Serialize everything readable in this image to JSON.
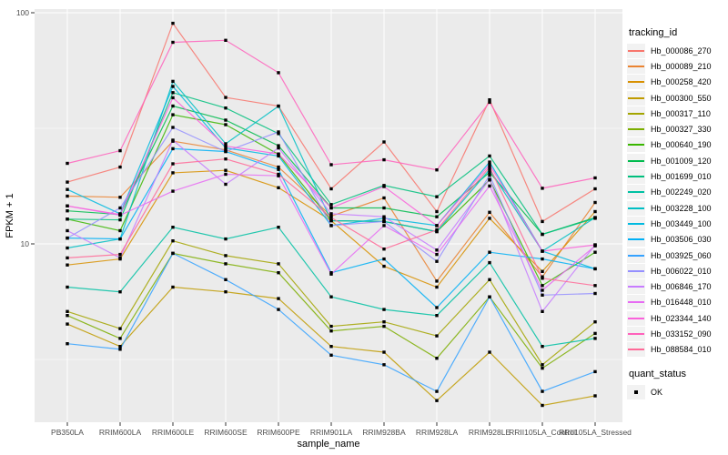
{
  "figure": {
    "y_axis_title": "FPKM + 1",
    "x_axis_title": "sample_name",
    "legend_tracking_title": "tracking_id",
    "legend_quant_title": "quant_status",
    "legend_quant_label": "OK"
  },
  "style": {
    "panel_bg": "#ebebeb",
    "grid_major": "#ffffff",
    "grid_minor": "#ffffff",
    "point_color": "#000000",
    "tick_color": "#333333",
    "tick_label_color": "#4d4d4d",
    "legend_key_bg": "#f2f2f2"
  },
  "chart_data": {
    "type": "line",
    "title": "",
    "xlabel": "sample_name",
    "ylabel": "FPKM + 1",
    "y_scale": "log10",
    "ylim": [
      1.7,
      104
    ],
    "y_major_ticks": [
      10,
      100
    ],
    "y_tick_labels": [
      "10",
      "100"
    ],
    "y_minor_gridlines": [
      3.162,
      31.62
    ],
    "grid": true,
    "legend_position": "right",
    "point_shape": "square",
    "quant_status": "OK",
    "categories": [
      "PB350LA",
      "RRIM600LA",
      "RRIM600LE",
      "RRIM600SE",
      "RRIM600PE",
      "RRIM901LA",
      "RRIM928BA",
      "RRIM928LA",
      "RRIM928LE",
      "RRII105LA_Control",
      "RRII105LA_Stressed"
    ],
    "series": [
      {
        "name": "Hb_000086_270",
        "color": "#F8766D",
        "values": [
          18.5,
          21.5,
          90,
          43,
          39.5,
          17.3,
          27.6,
          13.8,
          42,
          12.5,
          17.3
        ]
      },
      {
        "name": "Hb_000089_210",
        "color": "#EA8331",
        "values": [
          16.1,
          15.9,
          27.8,
          25.5,
          21.5,
          13.2,
          15.8,
          6.9,
          13.7,
          7.2,
          15.1
        ]
      },
      {
        "name": "Hb_000258_420",
        "color": "#D89000",
        "values": [
          8.1,
          8.6,
          20.3,
          20.8,
          17.5,
          12.6,
          8.0,
          6.5,
          12.9,
          7.6,
          13.8
        ]
      },
      {
        "name": "Hb_000300_550",
        "color": "#C09B00",
        "values": [
          4.5,
          3.6,
          6.5,
          6.2,
          5.8,
          3.6,
          3.4,
          2.1,
          3.4,
          2.0,
          2.2
        ]
      },
      {
        "name": "Hb_000317_110",
        "color": "#A3A500",
        "values": [
          5.1,
          4.3,
          10.3,
          8.9,
          8.2,
          4.4,
          4.6,
          4.0,
          7.0,
          3.0,
          4.6
        ]
      },
      {
        "name": "Hb_000327_330",
        "color": "#7CAE00",
        "values": [
          4.9,
          3.9,
          9.1,
          8.2,
          7.5,
          4.2,
          4.4,
          3.2,
          5.9,
          2.9,
          4.1
        ]
      },
      {
        "name": "Hb_000640_190",
        "color": "#39B600",
        "values": [
          12.8,
          11.4,
          36.2,
          32.8,
          24.4,
          12.6,
          12.5,
          11.3,
          18.9,
          6.6,
          9.2
        ]
      },
      {
        "name": "Hb_001009_120",
        "color": "#00BB4E",
        "values": [
          13.9,
          13.4,
          39.5,
          34.3,
          26.6,
          14.3,
          14.3,
          13.1,
          20.4,
          11.0,
          13.0
        ]
      },
      {
        "name": "Hb_001699_010",
        "color": "#00BF7D",
        "values": [
          12.8,
          12.7,
          45.1,
          38.7,
          30.0,
          14.8,
          17.9,
          16.0,
          24.0,
          11.0,
          12.9
        ]
      },
      {
        "name": "Hb_002249_020",
        "color": "#00C1A3",
        "values": [
          6.5,
          6.2,
          11.8,
          10.5,
          11.8,
          5.9,
          5.2,
          4.9,
          8.3,
          3.6,
          3.9
        ]
      },
      {
        "name": "Hb_003228_100",
        "color": "#00BFC4",
        "values": [
          9.6,
          10.5,
          50.5,
          27.1,
          39.4,
          12.6,
          12.5,
          11.3,
          21.0,
          9.3,
          13.0
        ]
      },
      {
        "name": "Hb_003449_100",
        "color": "#00BAE0",
        "values": [
          17.2,
          13.5,
          48.0,
          26.0,
          24.0,
          12.0,
          12.9,
          12.0,
          22.6,
          9.3,
          7.8
        ]
      },
      {
        "name": "Hb_003506_030",
        "color": "#00B0F6",
        "values": [
          10.6,
          10.5,
          25.8,
          25.1,
          21.0,
          7.5,
          8.6,
          5.3,
          9.2,
          8.6,
          7.8
        ]
      },
      {
        "name": "Hb_003925_060",
        "color": "#35A2FF",
        "values": [
          3.7,
          3.5,
          9.1,
          7.0,
          5.2,
          3.3,
          3.0,
          2.3,
          5.9,
          2.3,
          2.8
        ]
      },
      {
        "name": "Hb_006022_010",
        "color": "#9590FF",
        "values": [
          10.6,
          14.3,
          31.9,
          25.1,
          30.5,
          12.0,
          12.5,
          8.4,
          19.8,
          6.0,
          6.1
        ]
      },
      {
        "name": "Hb_006846_170",
        "color": "#C77CFF",
        "values": [
          11.4,
          8.7,
          28.1,
          18.1,
          26.0,
          13.5,
          13.1,
          9.4,
          19.0,
          5.1,
          9.9
        ]
      },
      {
        "name": "Hb_016448_010",
        "color": "#E76BF3",
        "values": [
          14.6,
          13.3,
          16.9,
          20.0,
          19.7,
          7.4,
          12.0,
          9.0,
          17.8,
          6.3,
          9.8
        ]
      },
      {
        "name": "Hb_023344_140",
        "color": "#FA62DB",
        "values": [
          14.6,
          13.4,
          42.9,
          26.5,
          24.5,
          14.3,
          17.7,
          12.0,
          22.0,
          9.3,
          9.9
        ]
      },
      {
        "name": "Hb_033152_090",
        "color": "#FF62BC",
        "values": [
          22.3,
          25.3,
          74.5,
          76.0,
          55.0,
          22.0,
          23.1,
          20.9,
          41.0,
          17.4,
          19.3
        ]
      },
      {
        "name": "Hb_088584_010",
        "color": "#FF6A98",
        "values": [
          8.7,
          9.0,
          22.2,
          23.3,
          20.0,
          13.0,
          9.5,
          11.5,
          21.5,
          7.1,
          6.6
        ]
      }
    ]
  }
}
